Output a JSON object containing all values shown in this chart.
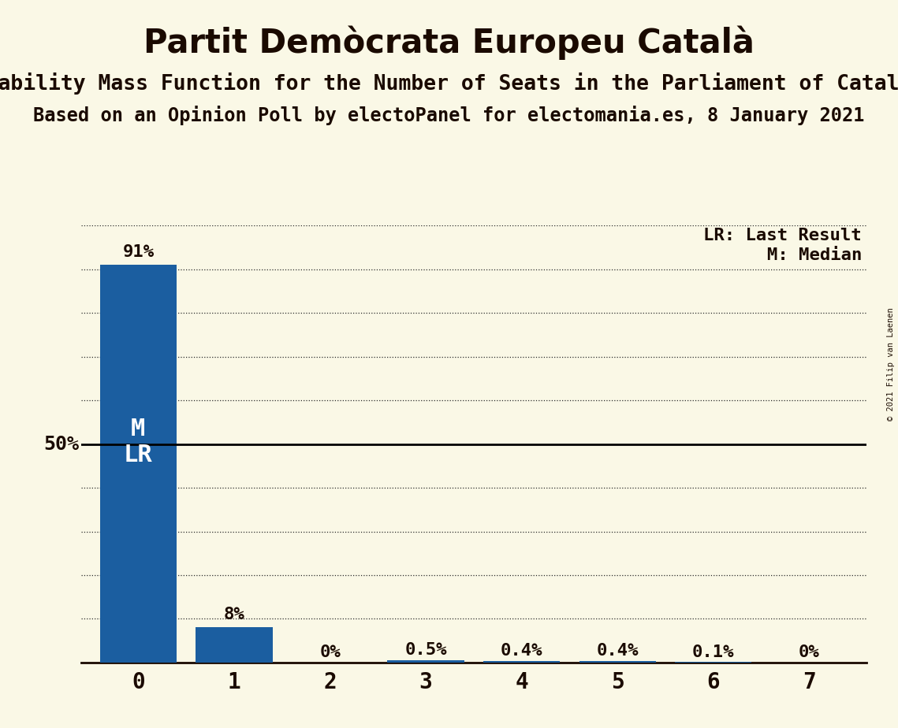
{
  "title": "Partit Demòcrata Europeu Català",
  "subtitle1": "Probability Mass Function for the Number of Seats in the Parliament of Catalonia",
  "subtitle2": "Based on an Opinion Poll by electoPanel for electomania.es, 8 January 2021",
  "copyright": "© 2021 Filip van Laenen",
  "categories": [
    0,
    1,
    2,
    3,
    4,
    5,
    6,
    7
  ],
  "values": [
    0.91,
    0.08,
    0.0,
    0.005,
    0.004,
    0.004,
    0.001,
    0.0
  ],
  "bar_color": "#1B5EA0",
  "background_color": "#FAF8E6",
  "text_color": "#1A0A00",
  "bar_labels": [
    "91%",
    "8%",
    "0%",
    "0.5%",
    "0.4%",
    "0.4%",
    "0.1%",
    "0%"
  ],
  "ylabel_50": "50%",
  "median_line": 0.5,
  "title_fontsize": 30,
  "subtitle1_fontsize": 19,
  "subtitle2_fontsize": 17,
  "legend_lr": "LR: Last Result",
  "legend_m": "M: Median",
  "ylim": [
    0,
    1.0
  ],
  "grid_yticks": [
    0.1,
    0.2,
    0.3,
    0.4,
    0.6,
    0.7,
    0.8,
    0.9,
    1.0
  ]
}
